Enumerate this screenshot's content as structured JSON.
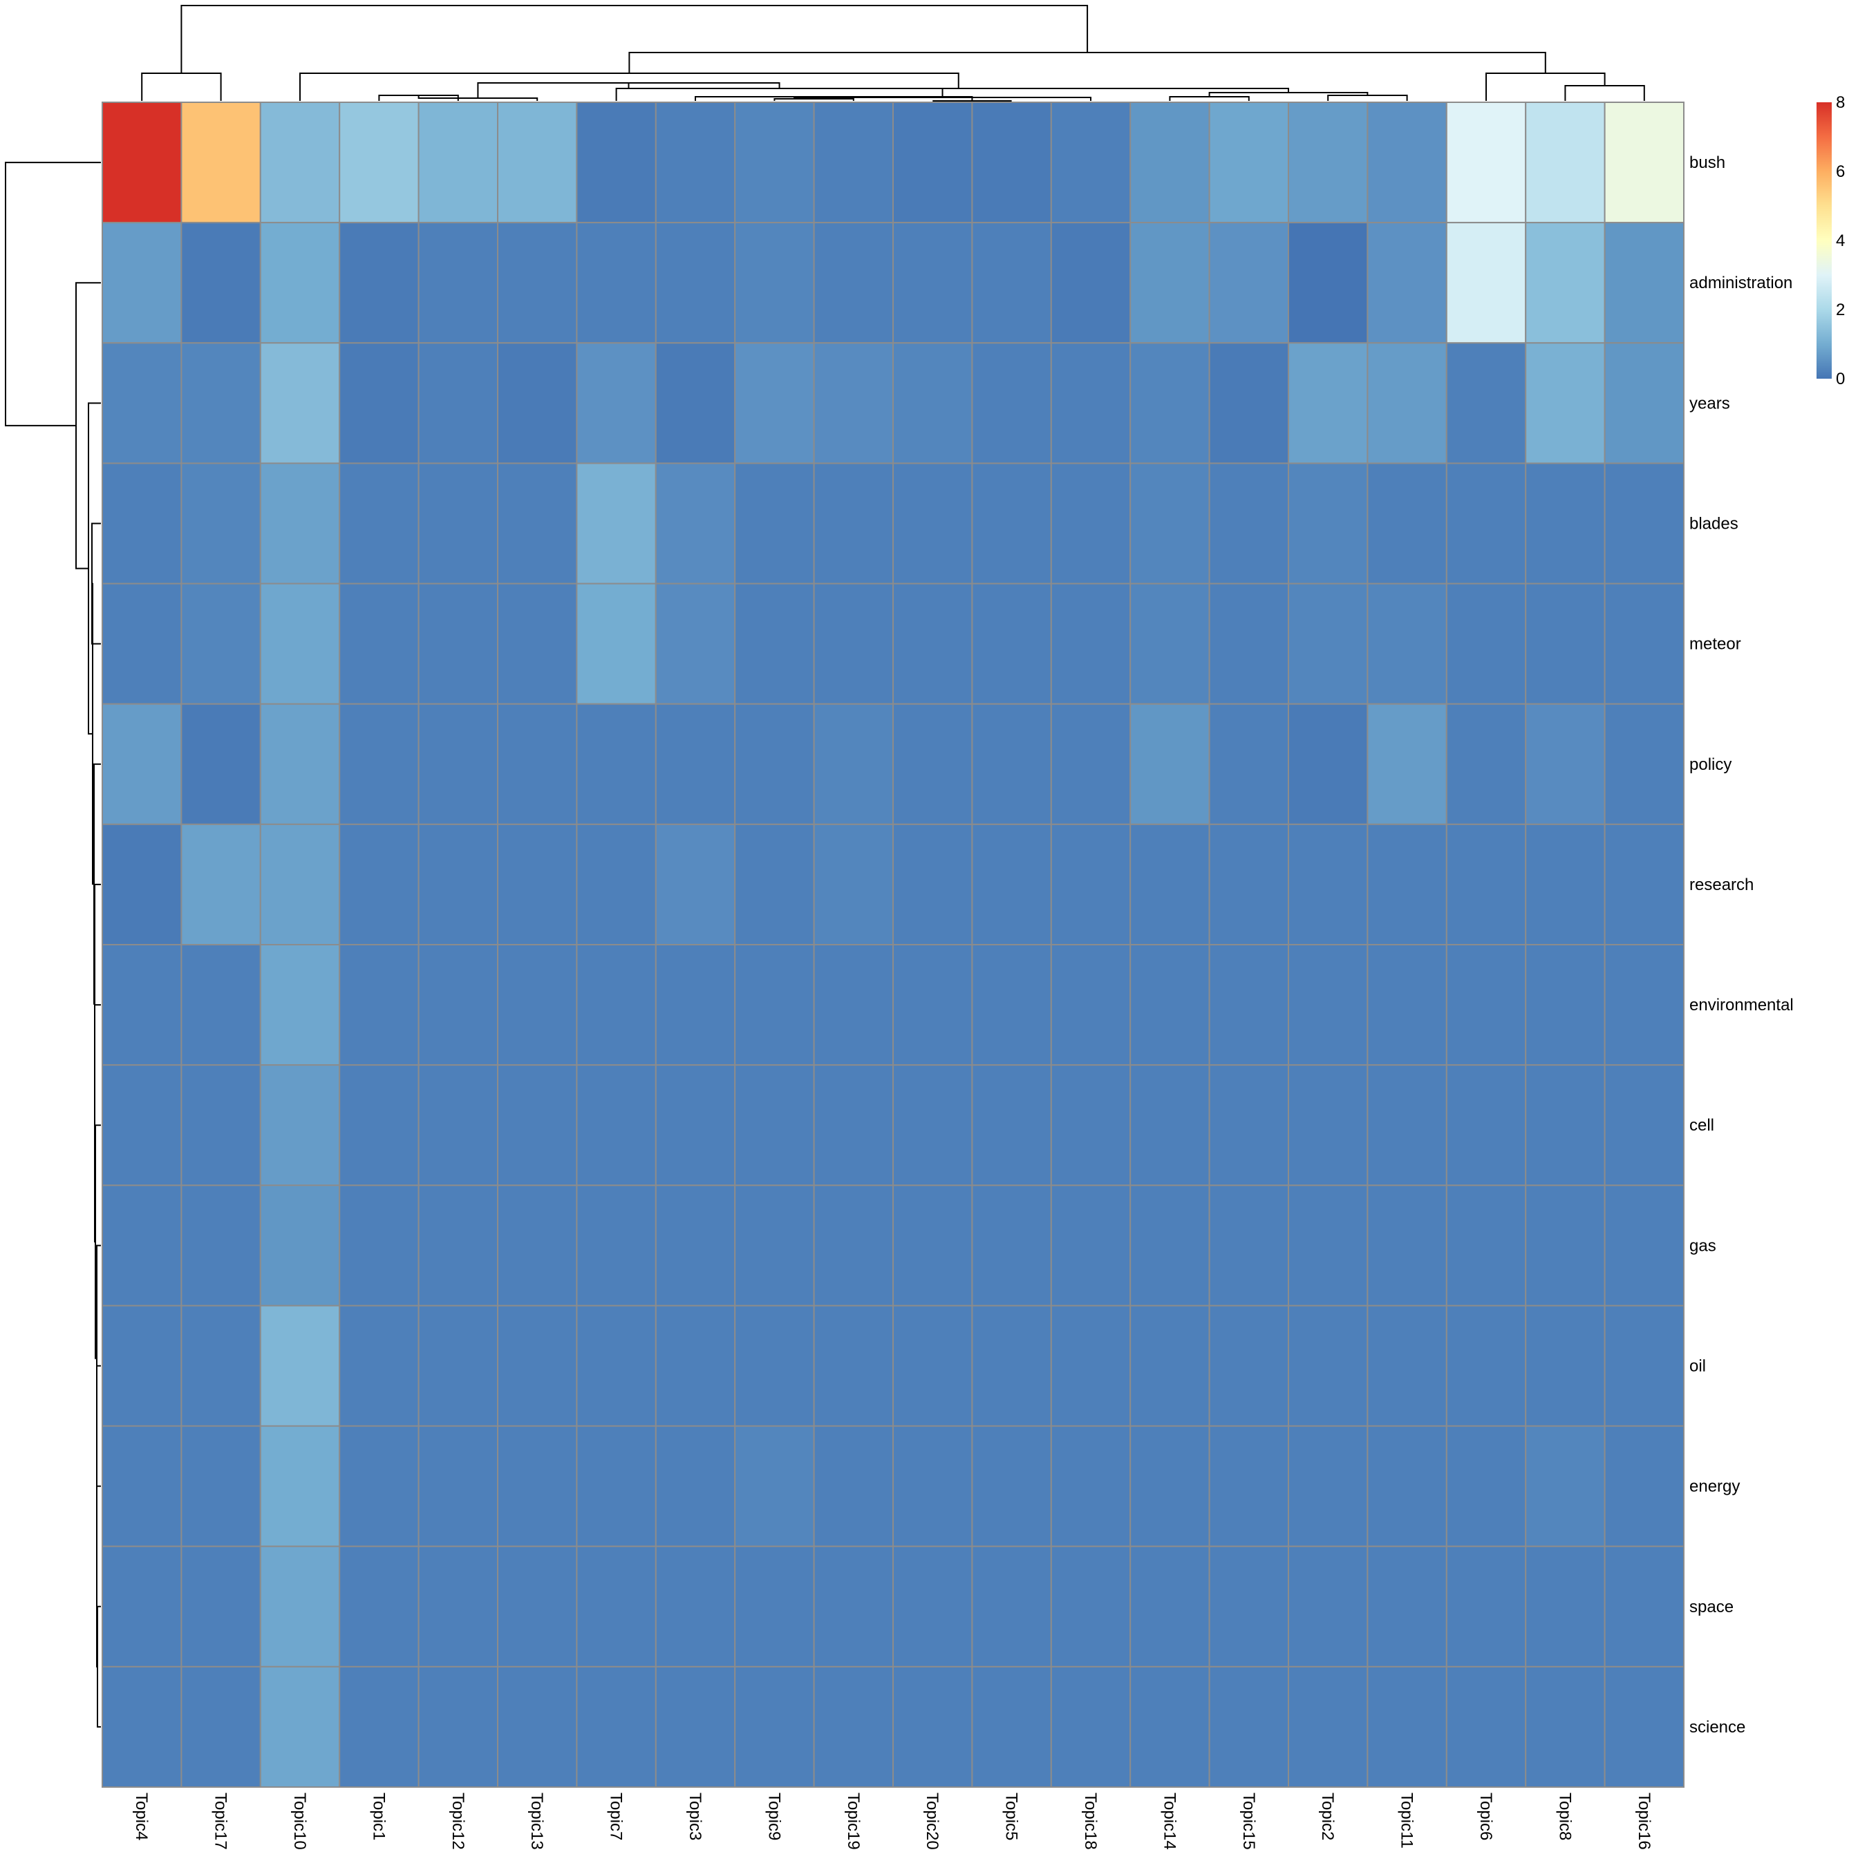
{
  "chart_data": {
    "type": "heatmap",
    "title": "",
    "xlabel": "",
    "ylabel": "",
    "columns": [
      "Topic4",
      "Topic17",
      "Topic10",
      "Topic1",
      "Topic12",
      "Topic13",
      "Topic7",
      "Topic3",
      "Topic9",
      "Topic19",
      "Topic20",
      "Topic5",
      "Topic18",
      "Topic14",
      "Topic15",
      "Topic2",
      "Topic11",
      "Topic6",
      "Topic8",
      "Topic16"
    ],
    "rows": [
      "bush",
      "administration",
      "years",
      "blades",
      "meteor",
      "policy",
      "research",
      "environmental",
      "cell",
      "gas",
      "oil",
      "energy",
      "space",
      "science"
    ],
    "values": [
      [
        8.0,
        5.6,
        1.3,
        1.6,
        1.2,
        1.2,
        0.1,
        0.2,
        0.3,
        0.2,
        0.1,
        0.1,
        0.2,
        0.6,
        0.9,
        0.7,
        0.5,
        3.0,
        2.4,
        3.4
      ],
      [
        0.7,
        0.1,
        1.0,
        0.1,
        0.2,
        0.2,
        0.2,
        0.2,
        0.3,
        0.2,
        0.2,
        0.2,
        0.1,
        0.6,
        0.5,
        0.0,
        0.5,
        2.8,
        1.4,
        0.6
      ],
      [
        0.3,
        0.3,
        1.3,
        0.1,
        0.2,
        0.1,
        0.5,
        0.1,
        0.5,
        0.4,
        0.3,
        0.2,
        0.2,
        0.3,
        0.1,
        0.8,
        0.7,
        0.2,
        1.1,
        0.6
      ],
      [
        0.2,
        0.3,
        0.8,
        0.2,
        0.2,
        0.2,
        1.1,
        0.4,
        0.2,
        0.2,
        0.2,
        0.2,
        0.2,
        0.3,
        0.2,
        0.3,
        0.2,
        0.2,
        0.2,
        0.2
      ],
      [
        0.2,
        0.3,
        0.9,
        0.2,
        0.2,
        0.2,
        1.0,
        0.4,
        0.2,
        0.2,
        0.2,
        0.2,
        0.2,
        0.3,
        0.2,
        0.3,
        0.3,
        0.2,
        0.2,
        0.2
      ],
      [
        0.7,
        0.1,
        0.8,
        0.2,
        0.2,
        0.2,
        0.2,
        0.2,
        0.2,
        0.3,
        0.2,
        0.2,
        0.2,
        0.6,
        0.2,
        0.1,
        0.7,
        0.2,
        0.4,
        0.2
      ],
      [
        0.1,
        0.8,
        0.8,
        0.2,
        0.2,
        0.2,
        0.2,
        0.4,
        0.2,
        0.3,
        0.2,
        0.2,
        0.2,
        0.2,
        0.2,
        0.2,
        0.2,
        0.2,
        0.2,
        0.2
      ],
      [
        0.2,
        0.2,
        0.9,
        0.2,
        0.2,
        0.2,
        0.2,
        0.2,
        0.2,
        0.2,
        0.2,
        0.2,
        0.2,
        0.2,
        0.2,
        0.2,
        0.2,
        0.2,
        0.2,
        0.2
      ],
      [
        0.2,
        0.2,
        0.7,
        0.2,
        0.2,
        0.2,
        0.2,
        0.2,
        0.2,
        0.2,
        0.2,
        0.2,
        0.2,
        0.2,
        0.2,
        0.2,
        0.2,
        0.2,
        0.2,
        0.2
      ],
      [
        0.2,
        0.2,
        0.6,
        0.2,
        0.2,
        0.2,
        0.2,
        0.2,
        0.2,
        0.2,
        0.2,
        0.2,
        0.2,
        0.2,
        0.2,
        0.2,
        0.2,
        0.2,
        0.2,
        0.2
      ],
      [
        0.2,
        0.2,
        1.2,
        0.2,
        0.2,
        0.2,
        0.2,
        0.2,
        0.2,
        0.2,
        0.2,
        0.2,
        0.2,
        0.2,
        0.2,
        0.2,
        0.2,
        0.2,
        0.2,
        0.2
      ],
      [
        0.2,
        0.2,
        1.0,
        0.2,
        0.2,
        0.2,
        0.2,
        0.2,
        0.3,
        0.2,
        0.2,
        0.2,
        0.2,
        0.2,
        0.2,
        0.2,
        0.2,
        0.2,
        0.3,
        0.2
      ],
      [
        0.2,
        0.2,
        0.9,
        0.2,
        0.2,
        0.2,
        0.2,
        0.2,
        0.2,
        0.2,
        0.2,
        0.2,
        0.2,
        0.2,
        0.2,
        0.2,
        0.2,
        0.2,
        0.2,
        0.2
      ],
      [
        0.2,
        0.2,
        0.9,
        0.2,
        0.2,
        0.2,
        0.2,
        0.2,
        0.2,
        0.2,
        0.2,
        0.2,
        0.2,
        0.2,
        0.2,
        0.2,
        0.2,
        0.2,
        0.2,
        0.2
      ]
    ],
    "color_scale": {
      "min": 0,
      "max": 8,
      "stops": [
        "#4575b4",
        "#74add1",
        "#abd9e9",
        "#e0f3f8",
        "#ffffbf",
        "#fee090",
        "#fdae61",
        "#f46d43",
        "#d73027"
      ],
      "legend_ticks": [
        0,
        2,
        4,
        6,
        8
      ]
    },
    "grid": true,
    "legend_position": "top-right",
    "column_dendrogram": true,
    "row_dendrogram": true
  }
}
